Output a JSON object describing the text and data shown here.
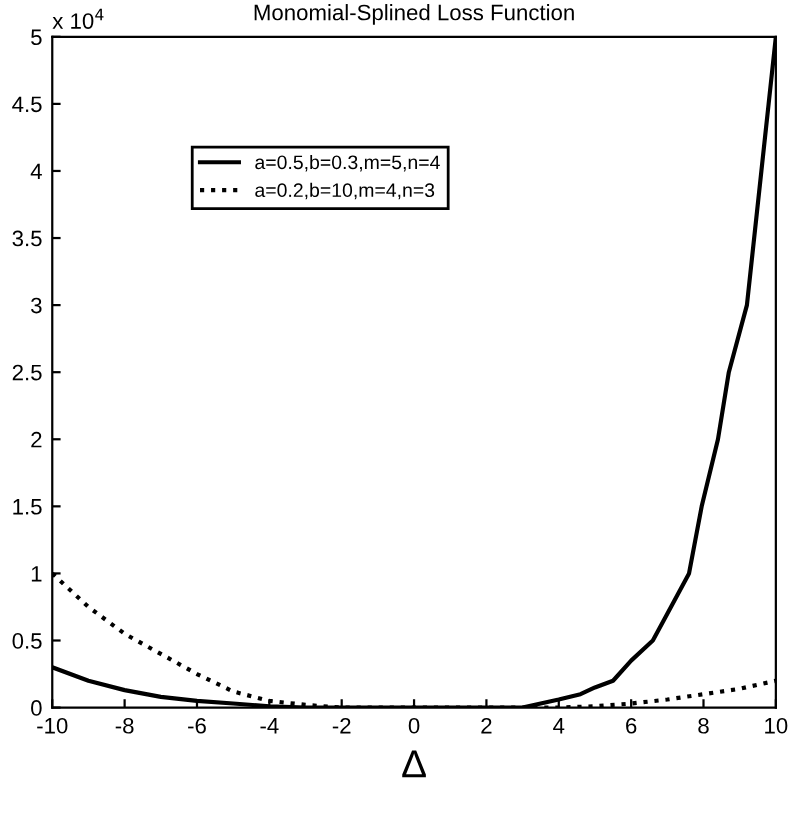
{
  "chart_data": {
    "type": "line",
    "title": "Monomial-Splined Loss Function",
    "xlabel": "Δ",
    "annotations": [
      "x 10$^{4}$"
    ],
    "xlim": [
      -10,
      10
    ],
    "xticks": [
      -10,
      -8,
      -6,
      -4,
      -2,
      0,
      2,
      4,
      6,
      8,
      10
    ],
    "ylim": [
      0,
      5
    ],
    "yticks": [
      0,
      0.5,
      1,
      1.5,
      2,
      2.5,
      3,
      3.5,
      4,
      4.5,
      5
    ],
    "grid": false,
    "legend": "top left",
    "marker": "none",
    "series": [
      {
        "name": "a=0.5,b=0.3,m=5,n=4",
        "color": "#000000",
        "line_style": "solid",
        "x": [
          -10,
          -9,
          -8,
          -7,
          -6,
          -5,
          -4,
          -3,
          3,
          3.5,
          4,
          4.6,
          5,
          5.5,
          6,
          6.6,
          7,
          7.6,
          7.95,
          8.4,
          8.7,
          9.2,
          9.6,
          9.8,
          10
        ],
        "values": [
          0.3,
          0.2,
          0.13,
          0.08,
          0.05,
          0.03,
          0.01,
          0,
          0,
          0.03,
          0.06,
          0.1,
          0.15,
          0.2,
          0.35,
          0.5,
          0.7,
          1.0,
          1.5,
          2.0,
          2.5,
          3.0,
          4.0,
          4.5,
          5.0
        ]
      },
      {
        "name": "a=0.2,b=10,m=4,n=3",
        "color": "#000000",
        "line_style": "dotted",
        "x": [
          -10,
          -9,
          -8,
          -7,
          -6,
          -5,
          -4,
          -3,
          -2,
          4,
          5,
          6,
          7,
          8,
          9,
          10
        ],
        "values": [
          1.0,
          0.75,
          0.55,
          0.4,
          0.25,
          0.12,
          0.05,
          0.02,
          0,
          0,
          0.01,
          0.03,
          0.06,
          0.1,
          0.14,
          0.2
        ]
      }
    ]
  }
}
